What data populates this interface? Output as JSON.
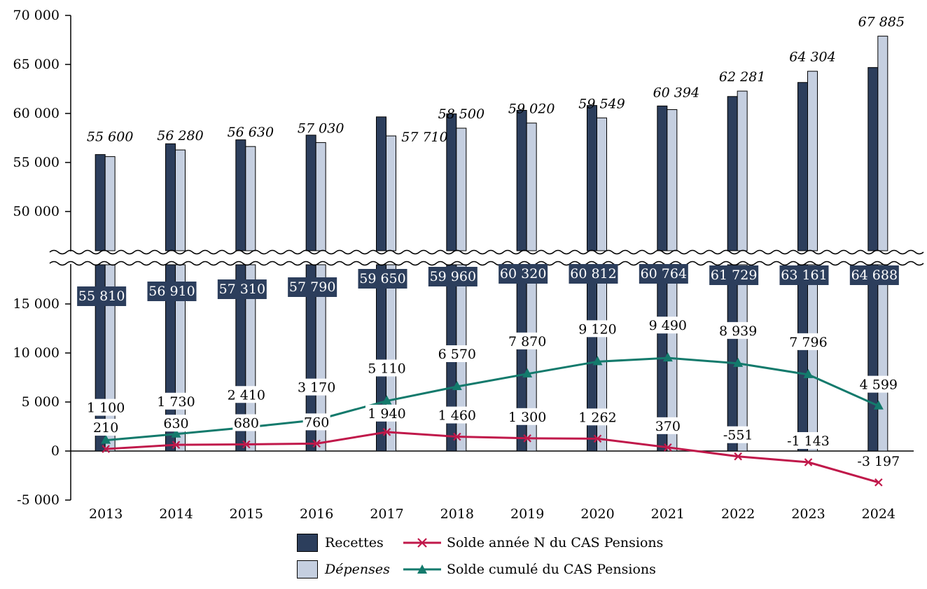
{
  "chart_data": {
    "type": "bar",
    "broken_axis": true,
    "categories": [
      "2013",
      "2014",
      "2015",
      "2016",
      "2017",
      "2018",
      "2019",
      "2020",
      "2021",
      "2022",
      "2023",
      "2024"
    ],
    "y_ticks_upper": [
      "70 000",
      "65 000",
      "60 000",
      "55 000",
      "50 000"
    ],
    "y_ticks_lower": [
      "15 000",
      "10 000",
      "5 000",
      "0",
      "-5 000"
    ],
    "ylim_upper": [
      46000,
      70000
    ],
    "ylim_lower": [
      -5000,
      19000
    ],
    "series": [
      {
        "name": "Recettes",
        "kind": "bar",
        "color": "#2c3e5c",
        "values": [
          55810,
          56910,
          57310,
          57790,
          59650,
          59960,
          60320,
          60812,
          60764,
          61729,
          63161,
          64688
        ],
        "labels": [
          "55 810",
          "56 910",
          "57 310",
          "57 790",
          "59 650",
          "59 960",
          "60 320",
          "60 812",
          "60 764",
          "61 729",
          "63 161",
          "64 688"
        ]
      },
      {
        "name": "Dépenses",
        "kind": "bar",
        "color": "#c5cfe0",
        "values": [
          55600,
          56280,
          56630,
          57030,
          57710,
          58500,
          59020,
          59549,
          60394,
          62281,
          64304,
          67885
        ],
        "labels": [
          "55 600",
          "56 280",
          "56 630",
          "57 030",
          "57 710",
          "58 500",
          "59 020",
          "59 549",
          "60 394",
          "62 281",
          "64 304",
          "67 885"
        ]
      },
      {
        "name": "Solde année N du CAS Pensions",
        "kind": "line",
        "color": "#c0184a",
        "values": [
          210,
          630,
          680,
          760,
          1940,
          1460,
          1300,
          1262,
          370,
          -551,
          -1143,
          -3197
        ],
        "labels": [
          "210",
          "630",
          "680",
          "760",
          "1 940",
          "1 460",
          "1 300",
          "1 262",
          "370",
          "-551",
          "-1 143",
          "-3 197"
        ]
      },
      {
        "name": "Solde cumulé du CAS Pensions",
        "kind": "line",
        "color": "#137a6c",
        "values": [
          1100,
          1730,
          2410,
          3170,
          5110,
          6570,
          7870,
          9120,
          9490,
          8939,
          7796,
          4599
        ],
        "labels": [
          "1 100",
          "1 730",
          "2 410",
          "3 170",
          "5 110",
          "6 570",
          "7 870",
          "9 120",
          "9 490",
          "8 939",
          "7 796",
          "4 599"
        ]
      }
    ],
    "legend_position": "bottom",
    "grid": false
  }
}
